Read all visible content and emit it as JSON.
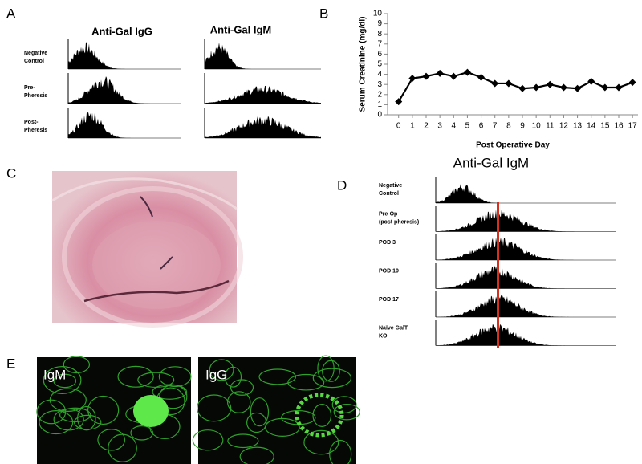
{
  "panels": {
    "a": {
      "label": "A",
      "titles": [
        "Anti-Gal IgG",
        "Anti-Gal IgM"
      ],
      "rows": [
        [
          "Negative",
          "Control"
        ],
        [
          "Pre-",
          "Pheresis"
        ],
        [
          "Post-",
          "Pheresis"
        ]
      ]
    },
    "c": {
      "label": "C"
    },
    "d": {
      "label": "D",
      "title": "Anti-Gal IgM",
      "rows": [
        [
          "Negative",
          "Control"
        ],
        [
          "Pre-Op",
          "(post pheresis)"
        ],
        [
          "POD 3"
        ],
        [
          "POD 10"
        ],
        [
          "POD 17"
        ],
        [
          "Naïve GalT-",
          "KO"
        ]
      ]
    },
    "e": {
      "label": "E",
      "images": [
        "IgM",
        "IgG"
      ]
    }
  },
  "chart_data": {
    "type": "line",
    "panel_label": "B",
    "x": [
      0,
      1,
      2,
      3,
      4,
      5,
      6,
      7,
      8,
      9,
      10,
      11,
      12,
      13,
      14,
      15,
      16,
      17
    ],
    "values": [
      1.3,
      3.6,
      3.8,
      4.1,
      3.8,
      4.2,
      3.7,
      3.1,
      3.1,
      2.6,
      2.7,
      3.0,
      2.7,
      2.6,
      3.3,
      2.7,
      2.7,
      3.2
    ],
    "xlim": [
      -0.8,
      17.4
    ],
    "xticks": [
      0,
      1,
      2,
      3,
      4,
      5,
      6,
      7,
      8,
      9,
      10,
      11,
      12,
      13,
      14,
      15,
      16,
      17
    ],
    "ylim": [
      0,
      10
    ],
    "yticks": [
      0,
      1,
      2,
      3,
      4,
      5,
      6,
      7,
      8,
      9,
      10
    ],
    "xlabel": "Post Operative Day",
    "ylabel": "Serum Creatinine (mg/dl)",
    "color": "#000000",
    "marker": "diamond",
    "grid": false
  }
}
